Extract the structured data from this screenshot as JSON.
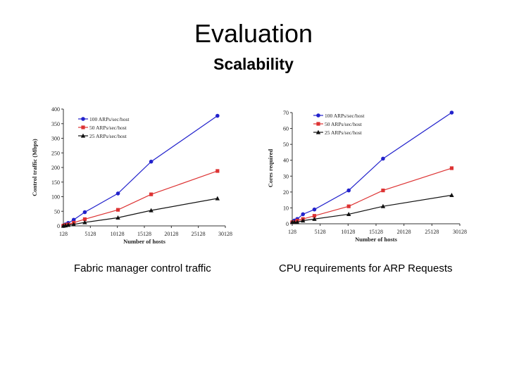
{
  "slide": {
    "title": "Evaluation",
    "subtitle": "Scalability"
  },
  "captions": {
    "left": "Fabric manager control traffic",
    "right": "CPU requirements for ARP Requests"
  },
  "colors": {
    "series_100": "#2222cc",
    "series_50": "#dd3333",
    "series_25": "#111111"
  },
  "chart_data": [
    {
      "type": "line",
      "xlabel": "Number of hosts",
      "ylabel": "Control traffic (Mbps)",
      "xlim": [
        128,
        30128
      ],
      "ylim": [
        0,
        400
      ],
      "x_ticks": [
        "128",
        "5128",
        "10128",
        "15128",
        "20128",
        "25128",
        "30128"
      ],
      "y_ticks": [
        "0",
        "50",
        "100",
        "150",
        "200",
        "250",
        "300",
        "350",
        "400"
      ],
      "legend_position": "top-left",
      "series": [
        {
          "name": "100 ARPs/sec/host",
          "marker": "circle",
          "x": [
            128,
            512,
            1024,
            2048,
            4096,
            10240,
            16384,
            28672
          ],
          "y": [
            1,
            5,
            10,
            21,
            47,
            111,
            220,
            377
          ]
        },
        {
          "name": "50 ARPs/sec/host",
          "marker": "square",
          "x": [
            128,
            512,
            1024,
            2048,
            4096,
            10240,
            16384,
            28672
          ],
          "y": [
            1,
            3,
            5,
            11,
            23,
            55,
            108,
            188
          ]
        },
        {
          "name": "25 ARPs/sec/host",
          "marker": "triangle",
          "x": [
            128,
            512,
            1024,
            2048,
            4096,
            10240,
            16384,
            28672
          ],
          "y": [
            0,
            1,
            3,
            5,
            12,
            28,
            53,
            94
          ]
        }
      ]
    },
    {
      "type": "line",
      "xlabel": "Number of hosts",
      "ylabel": "Cores required",
      "xlim": [
        128,
        30128
      ],
      "ylim": [
        0,
        70
      ],
      "x_ticks": [
        "128",
        "5128",
        "10128",
        "15128",
        "20128",
        "25128",
        "30128"
      ],
      "y_ticks": [
        "0",
        "10",
        "20",
        "30",
        "40",
        "50",
        "60",
        "70"
      ],
      "legend_position": "top-left",
      "series": [
        {
          "name": "100 ARPs/sec/host",
          "marker": "circle",
          "x": [
            128,
            512,
            1024,
            2048,
            4096,
            10240,
            16384,
            28672
          ],
          "y": [
            1,
            2,
            3,
            6,
            9,
            21,
            41,
            70
          ]
        },
        {
          "name": "50 ARPs/sec/host",
          "marker": "square",
          "x": [
            128,
            512,
            1024,
            2048,
            4096,
            10240,
            16384,
            28672
          ],
          "y": [
            1,
            1,
            2,
            3,
            5,
            11,
            21,
            35
          ]
        },
        {
          "name": "25 ARPs/sec/host",
          "marker": "triangle",
          "x": [
            128,
            512,
            1024,
            2048,
            4096,
            10240,
            16384,
            28672
          ],
          "y": [
            1,
            1,
            1,
            2,
            3,
            6,
            11,
            18
          ]
        }
      ]
    }
  ]
}
